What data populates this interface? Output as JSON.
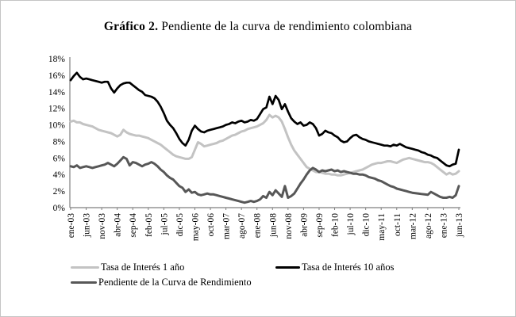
{
  "figure": {
    "title_bold": "Gráfico 2.",
    "title_rest": " Pendiente de la curva de rendimiento colombiana"
  },
  "chart_data": {
    "type": "line",
    "title": "Gráfico 2. Pendiente de la curva de rendimiento colombiana",
    "xlabel": "",
    "ylabel": "",
    "x_unit": "month",
    "x_range": [
      "ene-03",
      "jun-13"
    ],
    "x_tick_labels": [
      "ene-03",
      "jun-03",
      "nov-03",
      "abr-04",
      "sep-04",
      "feb-05",
      "jul-05",
      "dic-05",
      "may-06",
      "oct-06",
      "mar-07",
      "ago-07",
      "ene-08",
      "jun-08",
      "nov-08",
      "abr-09",
      "sep-09",
      "feb-10",
      "jul-10",
      "dic-10",
      "may-11",
      "oct-11",
      "mar-12",
      "ago-12",
      "ene-13",
      "jun-13"
    ],
    "x_tick_every_months": 5,
    "ylim": [
      0,
      18
    ],
    "y_tick_step": 2,
    "y_tick_suffix": "%",
    "grid": false,
    "legend_position": "bottom-left",
    "series": [
      {
        "name": "Tasa de Interés 1 año",
        "color": "#c3c3c3",
        "stroke_width": 3,
        "values": [
          10.4,
          10.5,
          10.3,
          10.3,
          10.1,
          10.0,
          9.9,
          9.8,
          9.6,
          9.4,
          9.3,
          9.2,
          9.1,
          9.0,
          8.8,
          8.6,
          8.8,
          9.4,
          9.1,
          8.9,
          8.8,
          8.7,
          8.7,
          8.6,
          8.5,
          8.4,
          8.2,
          8.0,
          7.8,
          7.6,
          7.3,
          7.0,
          6.7,
          6.4,
          6.2,
          6.1,
          6.0,
          5.9,
          5.9,
          6.1,
          7.0,
          7.9,
          7.7,
          7.4,
          7.5,
          7.6,
          7.7,
          7.8,
          8.0,
          8.1,
          8.3,
          8.5,
          8.7,
          8.8,
          9.0,
          9.2,
          9.3,
          9.5,
          9.6,
          9.7,
          9.8,
          10.0,
          10.2,
          10.6,
          11.2,
          10.9,
          11.1,
          10.9,
          10.4,
          9.5,
          8.5,
          7.6,
          6.9,
          6.4,
          5.9,
          5.4,
          4.9,
          4.7,
          4.5,
          4.3,
          4.3,
          4.2,
          4.1,
          4.1,
          4.0,
          4.0,
          3.9,
          3.9,
          4.0,
          4.1,
          4.2,
          4.3,
          4.4,
          4.5,
          4.6,
          4.8,
          5.0,
          5.2,
          5.3,
          5.4,
          5.4,
          5.5,
          5.6,
          5.6,
          5.5,
          5.4,
          5.6,
          5.8,
          5.9,
          6.0,
          5.9,
          5.8,
          5.7,
          5.6,
          5.5,
          5.5,
          5.4,
          5.2,
          4.9,
          4.6,
          4.3,
          4.0,
          4.2,
          4.0,
          4.1,
          4.4
        ]
      },
      {
        "name": "Tasa de Interés 10 años",
        "color": "#000000",
        "stroke_width": 2.7,
        "values": [
          15.4,
          15.9,
          16.3,
          15.8,
          15.5,
          15.6,
          15.5,
          15.4,
          15.3,
          15.2,
          15.1,
          15.2,
          15.2,
          14.4,
          13.9,
          14.4,
          14.8,
          15.0,
          15.1,
          15.1,
          14.8,
          14.5,
          14.2,
          14.0,
          13.6,
          13.5,
          13.4,
          13.2,
          12.8,
          12.2,
          11.4,
          10.5,
          10.0,
          9.6,
          9.0,
          8.3,
          7.8,
          7.5,
          8.2,
          9.3,
          9.9,
          9.5,
          9.2,
          9.1,
          9.3,
          9.4,
          9.5,
          9.6,
          9.7,
          9.8,
          10.0,
          10.1,
          10.3,
          10.2,
          10.4,
          10.5,
          10.3,
          10.4,
          10.6,
          10.5,
          10.7,
          11.3,
          11.9,
          12.1,
          13.4,
          12.5,
          13.5,
          13.0,
          11.9,
          12.5,
          11.6,
          10.8,
          10.4,
          10.1,
          10.3,
          9.9,
          10.0,
          10.3,
          10.1,
          9.6,
          8.7,
          8.9,
          9.3,
          9.1,
          9.0,
          8.7,
          8.5,
          8.1,
          7.9,
          8.0,
          8.4,
          8.7,
          8.8,
          8.5,
          8.3,
          8.2,
          8.0,
          7.9,
          7.8,
          7.7,
          7.6,
          7.5,
          7.5,
          7.4,
          7.6,
          7.5,
          7.7,
          7.5,
          7.3,
          7.2,
          7.1,
          7.0,
          6.9,
          6.7,
          6.6,
          6.4,
          6.3,
          6.1,
          6.0,
          5.7,
          5.4,
          5.1,
          5.0,
          5.2,
          5.3,
          7.0
        ]
      },
      {
        "name": "Pendiente de la Curva de Rendimiento",
        "color": "#575757",
        "stroke_width": 3,
        "values": [
          5.0,
          4.9,
          5.1,
          4.8,
          4.9,
          5.0,
          4.9,
          4.8,
          4.9,
          5.0,
          5.1,
          5.2,
          5.4,
          5.2,
          5.0,
          5.3,
          5.7,
          6.1,
          5.9,
          5.1,
          5.5,
          5.4,
          5.2,
          5.0,
          5.2,
          5.3,
          5.5,
          5.3,
          5.0,
          4.6,
          4.3,
          3.9,
          3.6,
          3.4,
          3.0,
          2.6,
          2.4,
          1.9,
          2.2,
          1.8,
          1.9,
          1.6,
          1.5,
          1.6,
          1.7,
          1.6,
          1.6,
          1.5,
          1.4,
          1.3,
          1.2,
          1.1,
          1.0,
          0.9,
          0.8,
          0.7,
          0.6,
          0.7,
          0.8,
          0.7,
          0.8,
          1.0,
          1.4,
          1.2,
          1.9,
          1.5,
          2.1,
          1.7,
          1.3,
          2.6,
          1.2,
          1.4,
          1.7,
          2.3,
          2.9,
          3.4,
          4.0,
          4.5,
          4.8,
          4.6,
          4.3,
          4.5,
          4.4,
          4.5,
          4.6,
          4.4,
          4.5,
          4.3,
          4.4,
          4.3,
          4.2,
          4.1,
          4.1,
          4.0,
          4.0,
          3.9,
          3.7,
          3.6,
          3.5,
          3.3,
          3.2,
          3.0,
          2.8,
          2.6,
          2.5,
          2.3,
          2.2,
          2.1,
          2.0,
          1.9,
          1.8,
          1.75,
          1.7,
          1.65,
          1.6,
          1.55,
          1.9,
          1.7,
          1.5,
          1.3,
          1.2,
          1.2,
          1.3,
          1.2,
          1.5,
          2.6
        ]
      }
    ],
    "axis_color": "#7f7f7f"
  }
}
